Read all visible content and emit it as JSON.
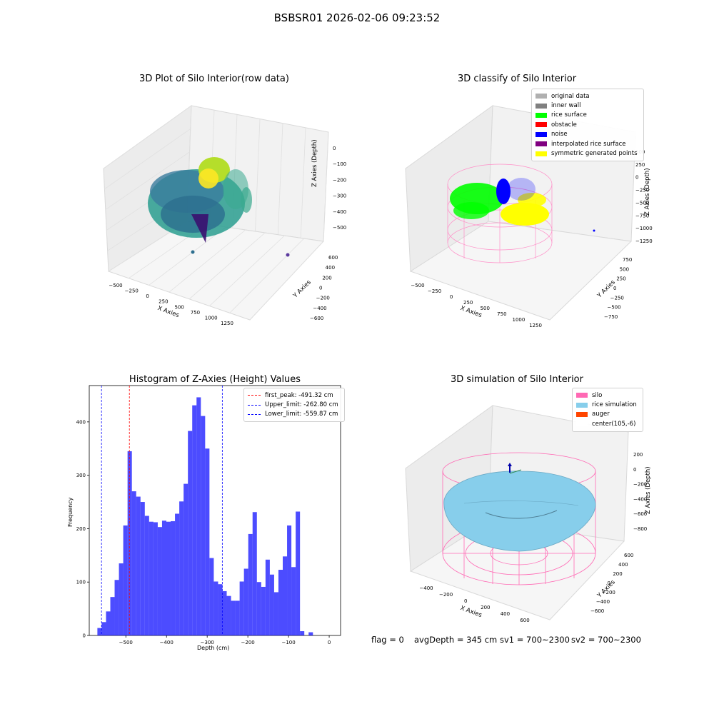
{
  "suptitle": "BSBSR01 2026-02-06 09:23:52",
  "footer": {
    "flag": "flag = 0",
    "avgDepth": "avgDepth = 345 cm",
    "sv1": "sv1 = 700~2300",
    "sv2": "sv2 = 700~2300"
  },
  "chart_data": [
    {
      "type": "scatter",
      "title": "3D Plot of Silo Interior(row data)",
      "xlabel": "X Axies",
      "ylabel": "Y Axies",
      "zlabel": "Z Axies (Depth)",
      "x_ticks": [
        "−500",
        "−250",
        "0",
        "250",
        "500",
        "750",
        "1000",
        "1250"
      ],
      "y_ticks": [
        "−600",
        "−400",
        "−200",
        "0",
        "200",
        "400",
        "600"
      ],
      "z_ticks": [
        "0",
        "−100",
        "−200",
        "−300",
        "−400",
        "−500"
      ],
      "colormap": "viridis"
    },
    {
      "type": "scatter",
      "title": "3D classify of Silo Interior",
      "xlabel": "X Axies",
      "ylabel": "Y Axies",
      "zlabel": "Z Axies (Depth)",
      "x_ticks": [
        "−500",
        "−250",
        "0",
        "250",
        "500",
        "750",
        "1000",
        "1250"
      ],
      "y_ticks": [
        "−750",
        "−500",
        "−250",
        "0",
        "250",
        "500",
        "750"
      ],
      "z_ticks": [
        "500",
        "250",
        "0",
        "−250",
        "−500",
        "−750",
        "−1000",
        "−1250"
      ],
      "legend": [
        {
          "label": "original data",
          "color": "#b0b0b0"
        },
        {
          "label": "inner wall",
          "color": "#808080"
        },
        {
          "label": "rice surface",
          "color": "#00ff00"
        },
        {
          "label": "obstacle",
          "color": "#ff0000"
        },
        {
          "label": "noise",
          "color": "#0000ff"
        },
        {
          "label": "interpolated rice surface",
          "color": "#800080"
        },
        {
          "label": "symmetric generated points",
          "color": "#ffff00"
        }
      ],
      "legend_position": "top-right"
    },
    {
      "type": "bar",
      "title": "Histogram of Z-Axies (Height) Values",
      "xlabel": "Depth (cm)",
      "ylabel": "Frequency",
      "xlim": [
        -590,
        28
      ],
      "ylim": [
        0,
        468
      ],
      "x_ticks": [
        -500,
        -400,
        -300,
        -200,
        -100,
        0
      ],
      "y_ticks": [
        0,
        100,
        200,
        300,
        400
      ],
      "bar_color": "#0000ff",
      "bin_start": -570,
      "bin_width": 10.6,
      "values": [
        14,
        25,
        45,
        72,
        104,
        135,
        206,
        345,
        270,
        260,
        250,
        224,
        213,
        212,
        203,
        215,
        213,
        214,
        228,
        251,
        284,
        383,
        431,
        446,
        411,
        350,
        145,
        101,
        96,
        83,
        74,
        65,
        65,
        101,
        125,
        190,
        231,
        100,
        91,
        142,
        114,
        81,
        123,
        148,
        206,
        128,
        232,
        8,
        0,
        6
      ],
      "vlines": [
        {
          "label": "first_peak: -491.32 cm",
          "x": -491.32,
          "color": "#ff0000"
        },
        {
          "label": "Upper_limit: -262.80 cm",
          "x": -262.8,
          "color": "#0000ff"
        },
        {
          "label": "Lower_limit: -559.87 cm",
          "x": -559.87,
          "color": "#0000ff"
        }
      ],
      "legend_position": "top-right"
    },
    {
      "type": "surface",
      "title": "3D simulation of Silo Interior",
      "xlabel": "X Axies",
      "ylabel": "Y Axies",
      "zlabel": "Z Axies (Depth)",
      "x_ticks": [
        "−400",
        "−200",
        "0",
        "200",
        "400",
        "600"
      ],
      "y_ticks": [
        "−600",
        "−400",
        "−200",
        "0",
        "200",
        "400",
        "600"
      ],
      "z_ticks": [
        "200",
        "0",
        "−200",
        "−400",
        "−600",
        "−800"
      ],
      "legend": [
        {
          "label": "silo",
          "color": "#ff69b4"
        },
        {
          "label": "rice simulation",
          "color": "#87ceeb"
        },
        {
          "label": "auger",
          "color": "#ff4500"
        },
        {
          "label": "center(105,-6)",
          "color": "#ffffff"
        }
      ],
      "legend_position": "top-right"
    }
  ]
}
